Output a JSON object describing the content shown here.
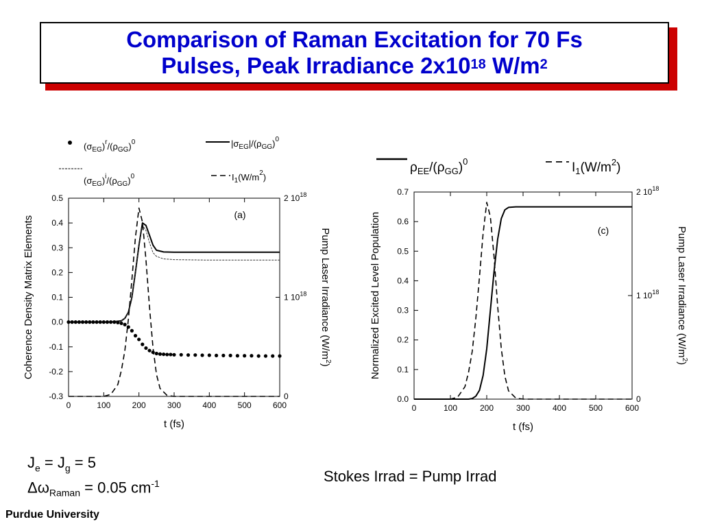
{
  "slide": {
    "title_line1": "Comparison of Raman Excitation for 70 Fs",
    "title_line2_prefix": "Pulses, Peak Irradiance 2x10",
    "title_line2_exp": "18",
    "title_line2_unit": " W/m",
    "title_line2_unit_exp": "2",
    "footer_left_1": "J",
    "footer_left_1_sub_e": "e",
    "footer_left_1_mid": " = J",
    "footer_left_1_sub_g": "g",
    "footer_left_1_end": " = 5",
    "footer_left_2_symbol": "Δω",
    "footer_left_2_sub": "Raman",
    "footer_left_2_val": " = 0.05 cm",
    "footer_left_2_exp": "-1",
    "footer_center": "Stokes Irrad = Pump Irrad",
    "university": "Purdue University"
  },
  "colors": {
    "title": "#0000cc",
    "shadow": "#cc0000"
  },
  "chart_data": [
    {
      "type": "line",
      "panel_label": "(a)",
      "xlabel": "t (fs)",
      "ylabel": "Coherence Density Matrix Elements",
      "y2label": "Pump Laser Irradiance (W/m",
      "y2label_exp": "2",
      "y2label_end": ")",
      "xlim": [
        0,
        600
      ],
      "ylim": [
        -0.3,
        0.5
      ],
      "y2lim": [
        0,
        2e+18
      ],
      "x_ticks": [
        "0",
        "100",
        "200",
        "300",
        "400",
        "500",
        "600"
      ],
      "y_ticks": [
        "-0.3",
        "-0.2",
        "-0.1",
        "0.0",
        "0.1",
        "0.2",
        "0.3",
        "0.4",
        "0.5"
      ],
      "y2_ticks": [
        {
          "v": 0,
          "base": "0",
          "exp": ""
        },
        {
          "v": 1e+18,
          "base": "1 10",
          "exp": "18"
        },
        {
          "v": 2e+18,
          "base": "2 10",
          "exp": "18"
        }
      ],
      "legend": [
        {
          "name": "(σEG)r/(ρGG)0",
          "style": "dots"
        },
        {
          "name": "|σEG|/(ρGG)0",
          "style": "solid"
        },
        {
          "name": "(σEG)i/(ρGG)0",
          "style": "dotted-thin"
        },
        {
          "name": "I1(W/m2)",
          "style": "dashed"
        }
      ],
      "series": [
        {
          "name": "|σEG|/(ρGG)0",
          "style": "solid",
          "axis": "y",
          "x": [
            0,
            120,
            150,
            160,
            170,
            180,
            190,
            200,
            210,
            220,
            230,
            240,
            250,
            270,
            300,
            400,
            600
          ],
          "y": [
            0,
            0,
            0.005,
            0.015,
            0.04,
            0.1,
            0.2,
            0.31,
            0.4,
            0.39,
            0.35,
            0.31,
            0.29,
            0.283,
            0.282,
            0.282,
            0.282
          ]
        },
        {
          "name": "(σEG)i/(ρGG)0",
          "style": "dotted-thin",
          "axis": "y",
          "x": [
            0,
            120,
            150,
            160,
            170,
            180,
            190,
            200,
            210,
            220,
            230,
            240,
            250,
            270,
            300,
            400,
            600
          ],
          "y": [
            0,
            0,
            0.005,
            0.015,
            0.04,
            0.1,
            0.2,
            0.31,
            0.39,
            0.37,
            0.32,
            0.28,
            0.265,
            0.255,
            0.252,
            0.25,
            0.25
          ]
        },
        {
          "name": "(σEG)r/(ρGG)0",
          "style": "dots",
          "axis": "y",
          "x": [
            0,
            10,
            20,
            30,
            40,
            50,
            60,
            70,
            80,
            90,
            100,
            110,
            120,
            130,
            140,
            150,
            160,
            170,
            180,
            190,
            200,
            210,
            220,
            230,
            240,
            250,
            260,
            270,
            280,
            290,
            300,
            320,
            340,
            360,
            380,
            400,
            420,
            440,
            460,
            480,
            500,
            520,
            540,
            560,
            580,
            600
          ],
          "y": [
            0,
            0,
            0,
            0,
            0,
            0,
            0,
            0,
            0,
            0,
            0,
            0,
            0,
            0,
            -0.002,
            -0.005,
            -0.01,
            -0.02,
            -0.035,
            -0.055,
            -0.07,
            -0.09,
            -0.105,
            -0.115,
            -0.122,
            -0.127,
            -0.129,
            -0.13,
            -0.131,
            -0.131,
            -0.132,
            -0.132,
            -0.133,
            -0.133,
            -0.134,
            -0.134,
            -0.135,
            -0.135,
            -0.135,
            -0.136,
            -0.136,
            -0.136,
            -0.137,
            -0.137,
            -0.137,
            -0.137
          ]
        },
        {
          "name": "I1(W/m2)",
          "style": "dashed",
          "axis": "y2",
          "x": [
            0,
            100,
            120,
            140,
            150,
            160,
            170,
            180,
            190,
            200,
            210,
            220,
            230,
            240,
            250,
            260,
            280,
            300,
            600
          ],
          "y": [
            0,
            0,
            2e+16,
            1.2e+17,
            2.6e+17,
            4.6e+17,
            7.8e+17,
            1.18e+18,
            1.6e+18,
            1.9e+18,
            1.76e+18,
            1.38e+18,
            9e+17,
            4.9e+17,
            2.2e+17,
            8e+16,
            1e+16,
            0,
            0
          ]
        }
      ]
    },
    {
      "type": "line",
      "panel_label": "(c)",
      "xlabel": "t (fs)",
      "ylabel": "Normalized Excited Level Population",
      "y2label": "Pump Laser Irradiance (W/m",
      "y2label_exp": "2",
      "y2label_end": ")",
      "xlim": [
        0,
        600
      ],
      "ylim": [
        0,
        0.7
      ],
      "y2lim": [
        0,
        2e+18
      ],
      "x_ticks": [
        "0",
        "100",
        "200",
        "300",
        "400",
        "500",
        "600"
      ],
      "y_ticks": [
        "0.0",
        "0.1",
        "0.2",
        "0.3",
        "0.4",
        "0.5",
        "0.6",
        "0.7"
      ],
      "y2_ticks": [
        {
          "v": 0,
          "base": "0",
          "exp": ""
        },
        {
          "v": 1e+18,
          "base": "1 10",
          "exp": "18"
        },
        {
          "v": 2e+18,
          "base": "2 10",
          "exp": "18"
        }
      ],
      "legend": [
        {
          "name": "ρEE/(ρGG)0",
          "style": "solid"
        },
        {
          "name": "I1(W/m2)",
          "style": "dashed"
        }
      ],
      "series": [
        {
          "name": "ρEE/(ρGG)0",
          "style": "solid",
          "axis": "y",
          "x": [
            0,
            150,
            160,
            170,
            180,
            190,
            200,
            210,
            220,
            230,
            240,
            250,
            260,
            280,
            300,
            600
          ],
          "y": [
            0,
            0,
            0.002,
            0.01,
            0.03,
            0.08,
            0.17,
            0.3,
            0.43,
            0.54,
            0.61,
            0.64,
            0.648,
            0.65,
            0.65,
            0.65
          ]
        },
        {
          "name": "I1(W/m2)",
          "style": "dashed",
          "axis": "y2",
          "x": [
            0,
            100,
            120,
            140,
            150,
            160,
            170,
            180,
            190,
            200,
            210,
            220,
            230,
            240,
            250,
            260,
            280,
            300,
            600
          ],
          "y": [
            0,
            0,
            2e+16,
            1.2e+17,
            2.6e+17,
            4.6e+17,
            7.8e+17,
            1.18e+18,
            1.6e+18,
            1.9e+18,
            1.76e+18,
            1.38e+18,
            9e+17,
            4.9e+17,
            2.2e+17,
            8e+16,
            1e+16,
            0,
            0
          ]
        }
      ]
    }
  ]
}
